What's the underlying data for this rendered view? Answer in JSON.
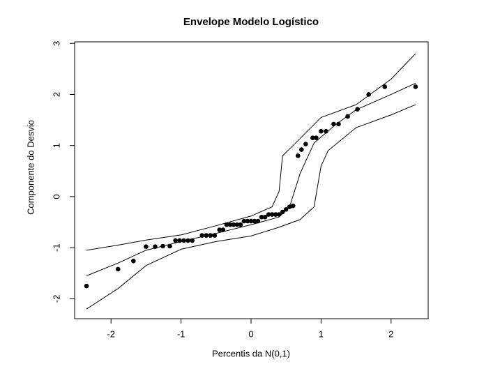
{
  "chart_data": {
    "type": "scatter",
    "title": "Envelope Modelo Logístico",
    "x_label": "Percentis da N(0,1)",
    "y_label": "Componente do Desvio",
    "xlim": [
      -2.52,
      2.53
    ],
    "ylim": [
      -2.39,
      3.03
    ],
    "xticks": [
      -2,
      -1,
      0,
      1,
      2
    ],
    "yticks": [
      -2,
      -1,
      0,
      1,
      2,
      3
    ],
    "series": [
      {
        "mark": "line",
        "color": "#000000",
        "x": [
          -2.35,
          -1.9,
          -1.5,
          -1.0,
          -0.5,
          0,
          0.4,
          0.7,
          0.9,
          1.0,
          1.1,
          1.5,
          2.0,
          2.35
        ],
        "values": [
          -2.2,
          -1.8,
          -1.35,
          -1.03,
          -0.88,
          -0.77,
          -0.6,
          -0.45,
          -0.2,
          0.6,
          0.9,
          1.35,
          1.6,
          1.8
        ]
      },
      {
        "mark": "line",
        "color": "#000000",
        "x": [
          -2.35,
          -1.9,
          -1.5,
          -1.0,
          -0.5,
          0,
          0.4,
          0.55,
          0.7,
          0.9,
          1.2,
          1.5,
          2.0,
          2.35
        ],
        "values": [
          -1.55,
          -1.3,
          -1.05,
          -0.88,
          -0.72,
          -0.55,
          -0.4,
          -0.2,
          0.45,
          1.05,
          1.4,
          1.7,
          2.0,
          2.22
        ]
      },
      {
        "mark": "line",
        "color": "#000000",
        "x": [
          -2.35,
          -1.9,
          -1.5,
          -1.0,
          -0.5,
          0,
          0.3,
          0.4,
          0.45,
          0.6,
          1.0,
          1.5,
          2.0,
          2.35
        ],
        "values": [
          -1.05,
          -0.95,
          -0.85,
          -0.75,
          -0.57,
          -0.38,
          -0.2,
          0.1,
          0.8,
          1.0,
          1.55,
          1.8,
          2.3,
          2.8
        ]
      },
      {
        "mark": "points",
        "color": "#000000",
        "x": [
          -2.35,
          -1.9,
          -1.68,
          -1.5,
          -1.37,
          -1.26,
          -1.16,
          -1.08,
          -1.02,
          -0.96,
          -0.9,
          -0.84,
          -0.7,
          -0.64,
          -0.58,
          -0.52,
          -0.45,
          -0.4,
          -0.35,
          -0.3,
          -0.25,
          -0.2,
          -0.15,
          -0.1,
          -0.05,
          0,
          0.05,
          0.1,
          0.15,
          0.2,
          0.25,
          0.3,
          0.35,
          0.4,
          0.45,
          0.5,
          0.55,
          0.6,
          0.67,
          0.72,
          0.78,
          0.88,
          0.93,
          1.0,
          1.07,
          1.18,
          1.25,
          1.38,
          1.52,
          1.68,
          1.91,
          2.35
        ],
        "values": [
          -1.75,
          -1.42,
          -1.26,
          -0.98,
          -0.98,
          -0.97,
          -0.97,
          -0.86,
          -0.86,
          -0.86,
          -0.86,
          -0.86,
          -0.76,
          -0.76,
          -0.76,
          -0.76,
          -0.65,
          -0.65,
          -0.55,
          -0.55,
          -0.55,
          -0.55,
          -0.55,
          -0.48,
          -0.48,
          -0.48,
          -0.48,
          -0.48,
          -0.4,
          -0.4,
          -0.35,
          -0.35,
          -0.35,
          -0.35,
          -0.3,
          -0.25,
          -0.2,
          -0.18,
          0.8,
          0.92,
          1.03,
          1.15,
          1.15,
          1.28,
          1.28,
          1.42,
          1.42,
          1.57,
          1.71,
          2.0,
          2.15,
          2.15
        ]
      }
    ]
  }
}
